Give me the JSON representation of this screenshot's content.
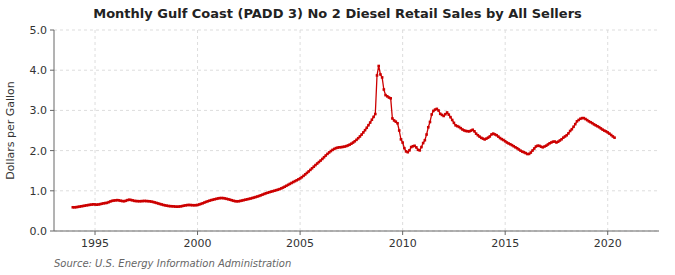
{
  "chart_data": {
    "type": "line",
    "title": "Monthly Gulf Coast (PADD 3) No 2 Diesel Retail Sales by All Sellers",
    "y_label": "Dollars per Gallon",
    "annotations": [
      "Source: U.S. Energy Information Administration"
    ],
    "color": "#cc0000",
    "marker": "square",
    "line_style": "solid",
    "grid": true,
    "xlim": [
      1993.0,
      2022.5
    ],
    "xticks": [
      1995,
      2000,
      2005,
      2010,
      2015,
      2020
    ],
    "ylim": [
      0.0,
      5.0
    ],
    "yticks": [
      {
        "value": 0.0,
        "label": "0.0"
      },
      {
        "value": 1.0,
        "label": "1.0"
      },
      {
        "value": 2.0,
        "label": "2.0"
      },
      {
        "value": 3.0,
        "label": "3.0"
      },
      {
        "value": 4.0,
        "label": "4.0"
      },
      {
        "value": 5.0,
        "label": "5.0"
      }
    ],
    "x": [
      1993.917,
      1994.0,
      1994.083,
      1994.167,
      1994.25,
      1994.333,
      1994.417,
      1994.5,
      1994.583,
      1994.667,
      1994.75,
      1994.833,
      1994.917,
      1995.0,
      1995.083,
      1995.167,
      1995.25,
      1995.333,
      1995.417,
      1995.5,
      1995.583,
      1995.667,
      1995.75,
      1995.833,
      1995.917,
      1996.0,
      1996.083,
      1996.167,
      1996.25,
      1996.333,
      1996.417,
      1996.5,
      1996.583,
      1996.667,
      1996.75,
      1996.833,
      1996.917,
      1997.0,
      1997.083,
      1997.167,
      1997.25,
      1997.333,
      1997.417,
      1997.5,
      1997.583,
      1997.667,
      1997.75,
      1997.833,
      1997.917,
      1998.0,
      1998.083,
      1998.167,
      1998.25,
      1998.333,
      1998.417,
      1998.5,
      1998.583,
      1998.667,
      1998.75,
      1998.833,
      1998.917,
      1999.0,
      1999.083,
      1999.167,
      1999.25,
      1999.333,
      1999.417,
      1999.5,
      1999.583,
      1999.667,
      1999.75,
      1999.833,
      1999.917,
      2000.0,
      2000.083,
      2000.167,
      2000.25,
      2000.333,
      2000.417,
      2000.5,
      2000.583,
      2000.667,
      2000.75,
      2000.833,
      2000.917,
      2001.0,
      2001.083,
      2001.167,
      2001.25,
      2001.333,
      2001.417,
      2001.5,
      2001.583,
      2001.667,
      2001.75,
      2001.833,
      2001.917,
      2002.0,
      2002.083,
      2002.167,
      2002.25,
      2002.333,
      2002.417,
      2002.5,
      2002.583,
      2002.667,
      2002.75,
      2002.833,
      2002.917,
      2003.0,
      2003.083,
      2003.167,
      2003.25,
      2003.333,
      2003.417,
      2003.5,
      2003.583,
      2003.667,
      2003.75,
      2003.833,
      2003.917,
      2004.0,
      2004.083,
      2004.167,
      2004.25,
      2004.333,
      2004.417,
      2004.5,
      2004.583,
      2004.667,
      2004.75,
      2004.833,
      2004.917,
      2005.0,
      2005.083,
      2005.167,
      2005.25,
      2005.333,
      2005.417,
      2005.5,
      2005.583,
      2005.667,
      2005.75,
      2005.833,
      2005.917,
      2006.0,
      2006.083,
      2006.167,
      2006.25,
      2006.333,
      2006.417,
      2006.5,
      2006.583,
      2006.667,
      2006.75,
      2006.833,
      2006.917,
      2007.0,
      2007.083,
      2007.167,
      2007.25,
      2007.333,
      2007.417,
      2007.5,
      2007.583,
      2007.667,
      2007.75,
      2007.833,
      2007.917,
      2008.0,
      2008.083,
      2008.167,
      2008.25,
      2008.333,
      2008.417,
      2008.5,
      2008.583,
      2008.667,
      2008.75,
      2008.833,
      2008.917,
      2009.0,
      2009.083,
      2009.167,
      2009.25,
      2009.333,
      2009.417,
      2009.5,
      2009.583,
      2009.667,
      2009.75,
      2009.833,
      2009.917,
      2010.0,
      2010.083,
      2010.167,
      2010.25,
      2010.333,
      2010.417,
      2010.5,
      2010.583,
      2010.667,
      2010.75,
      2010.833,
      2010.917,
      2011.0,
      2011.083,
      2011.167,
      2011.25,
      2011.333,
      2011.417,
      2011.5,
      2011.583,
      2011.667,
      2011.75,
      2011.833,
      2011.917,
      2012.0,
      2012.083,
      2012.167,
      2012.25,
      2012.333,
      2012.417,
      2012.5,
      2012.583,
      2012.667,
      2012.75,
      2012.833,
      2012.917,
      2013.0,
      2013.083,
      2013.167,
      2013.25,
      2013.333,
      2013.417,
      2013.5,
      2013.583,
      2013.667,
      2013.75,
      2013.833,
      2013.917,
      2014.0,
      2014.083,
      2014.167,
      2014.25,
      2014.333,
      2014.417,
      2014.5,
      2014.583,
      2014.667,
      2014.75,
      2014.833,
      2014.917,
      2015.0,
      2015.083,
      2015.167,
      2015.25,
      2015.333,
      2015.417,
      2015.5,
      2015.583,
      2015.667,
      2015.75,
      2015.833,
      2015.917,
      2016.0,
      2016.083,
      2016.167,
      2016.25,
      2016.333,
      2016.417,
      2016.5,
      2016.583,
      2016.667,
      2016.75,
      2016.833,
      2016.917,
      2017.0,
      2017.083,
      2017.167,
      2017.25,
      2017.333,
      2017.417,
      2017.5,
      2017.583,
      2017.667,
      2017.75,
      2017.833,
      2017.917,
      2018.0,
      2018.083,
      2018.167,
      2018.25,
      2018.333,
      2018.417,
      2018.5,
      2018.583,
      2018.667,
      2018.75,
      2018.833,
      2018.917,
      2019.0,
      2019.083,
      2019.167,
      2019.25,
      2019.333,
      2019.417,
      2019.5,
      2019.583,
      2019.667,
      2019.75,
      2019.833,
      2019.917,
      2020.0,
      2020.083,
      2020.167,
      2020.25,
      2020.333
    ],
    "values": [
      0.59,
      0.589,
      0.593,
      0.6,
      0.608,
      0.615,
      0.622,
      0.63,
      0.638,
      0.645,
      0.652,
      0.658,
      0.663,
      0.66,
      0.655,
      0.66,
      0.668,
      0.678,
      0.688,
      0.695,
      0.7,
      0.718,
      0.735,
      0.75,
      0.758,
      0.762,
      0.768,
      0.762,
      0.752,
      0.745,
      0.74,
      0.752,
      0.768,
      0.778,
      0.772,
      0.762,
      0.75,
      0.745,
      0.742,
      0.74,
      0.742,
      0.745,
      0.748,
      0.745,
      0.742,
      0.738,
      0.732,
      0.722,
      0.71,
      0.698,
      0.685,
      0.672,
      0.66,
      0.648,
      0.638,
      0.63,
      0.622,
      0.618,
      0.615,
      0.612,
      0.608,
      0.605,
      0.608,
      0.612,
      0.62,
      0.63,
      0.638,
      0.645,
      0.648,
      0.645,
      0.642,
      0.64,
      0.642,
      0.648,
      0.66,
      0.675,
      0.69,
      0.708,
      0.725,
      0.74,
      0.755,
      0.768,
      0.778,
      0.79,
      0.8,
      0.81,
      0.818,
      0.82,
      0.818,
      0.81,
      0.8,
      0.79,
      0.778,
      0.765,
      0.752,
      0.742,
      0.738,
      0.74,
      0.748,
      0.758,
      0.768,
      0.778,
      0.788,
      0.798,
      0.808,
      0.82,
      0.832,
      0.845,
      0.858,
      0.872,
      0.888,
      0.905,
      0.922,
      0.938,
      0.952,
      0.965,
      0.978,
      0.99,
      1.002,
      1.015,
      1.028,
      1.042,
      1.06,
      1.08,
      1.102,
      1.125,
      1.148,
      1.172,
      1.195,
      1.218,
      1.24,
      1.262,
      1.285,
      1.308,
      1.338,
      1.372,
      1.408,
      1.445,
      1.482,
      1.52,
      1.56,
      1.6,
      1.64,
      1.678,
      1.715,
      1.752,
      1.792,
      1.835,
      1.878,
      1.918,
      1.955,
      1.988,
      2.018,
      2.042,
      2.062,
      2.075,
      2.082,
      2.085,
      2.092,
      2.1,
      2.112,
      2.128,
      2.148,
      2.172,
      2.2,
      2.232,
      2.268,
      2.308,
      2.352,
      2.4,
      2.452,
      2.508,
      2.568,
      2.632,
      2.698,
      2.768,
      2.838,
      2.91,
      3.87,
      4.105,
      3.895,
      3.82,
      3.52,
      3.38,
      3.35,
      3.32,
      3.3,
      2.8,
      2.75,
      2.72,
      2.68,
      2.5,
      2.28,
      2.2,
      2.06,
      1.98,
      1.96,
      2.008,
      2.088,
      2.108,
      2.12,
      2.08,
      2.02,
      2.005,
      2.088,
      2.188,
      2.258,
      2.4,
      2.58,
      2.712,
      2.9,
      2.988,
      3.02,
      3.038,
      2.998,
      2.915,
      2.888,
      2.862,
      2.905,
      2.948,
      2.895,
      2.832,
      2.762,
      2.69,
      2.628,
      2.608,
      2.588,
      2.558,
      2.525,
      2.502,
      2.488,
      2.482,
      2.478,
      2.498,
      2.518,
      2.48,
      2.422,
      2.382,
      2.348,
      2.318,
      2.298,
      2.278,
      2.298,
      2.322,
      2.352,
      2.402,
      2.422,
      2.402,
      2.382,
      2.348,
      2.312,
      2.285,
      2.262,
      2.232,
      2.202,
      2.178,
      2.158,
      2.135,
      2.108,
      2.082,
      2.058,
      2.028,
      1.998,
      1.975,
      1.958,
      1.938,
      1.915,
      1.918,
      1.952,
      2.002,
      2.052,
      2.102,
      2.122,
      2.118,
      2.098,
      2.082,
      2.102,
      2.122,
      2.152,
      2.182,
      2.202,
      2.222,
      2.225,
      2.202,
      2.222,
      2.252,
      2.282,
      2.322,
      2.352,
      2.382,
      2.428,
      2.488,
      2.532,
      2.592,
      2.658,
      2.728,
      2.762,
      2.792,
      2.808,
      2.808,
      2.785,
      2.758,
      2.728,
      2.705,
      2.682,
      2.652,
      2.628,
      2.605,
      2.582,
      2.552,
      2.522,
      2.498,
      2.478,
      2.452,
      2.422,
      2.388,
      2.352,
      2.322
    ]
  }
}
